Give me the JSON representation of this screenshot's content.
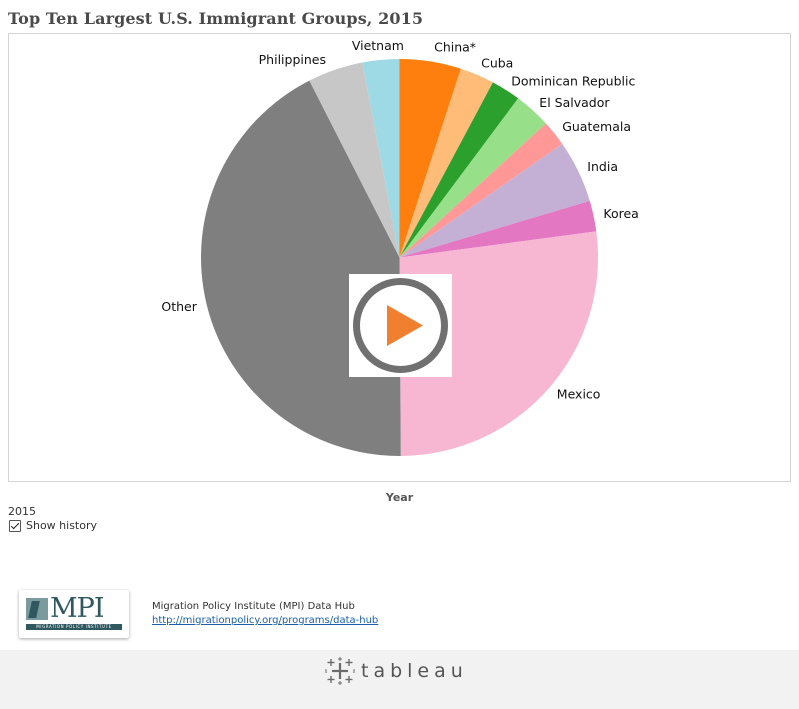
{
  "title": "Top Ten Largest U.S. Immigrant Groups, 2015",
  "chart_data": {
    "type": "pie",
    "title": "Top Ten Largest U.S. Immigrant Groups, 2015",
    "slices": [
      {
        "label": "China*",
        "value": 5.0,
        "color": "#ff7f0e"
      },
      {
        "label": "Cuba",
        "value": 2.8,
        "color": "#ffbb78"
      },
      {
        "label": "Dominican Republic",
        "value": 2.4,
        "color": "#2ca02c"
      },
      {
        "label": "El Salvador",
        "value": 3.0,
        "color": "#98df8a"
      },
      {
        "label": "Guatemala",
        "value": 2.1,
        "color": "#ff9896"
      },
      {
        "label": "India",
        "value": 5.1,
        "color": "#c5b0d5"
      },
      {
        "label": "Korea",
        "value": 2.5,
        "color": "#e377c2"
      },
      {
        "label": "Mexico",
        "value": 27.0,
        "color": "#f7b6d2"
      },
      {
        "label": "Other",
        "value": 42.6,
        "color": "#7f7f7f"
      },
      {
        "label": "Philippines",
        "value": 4.5,
        "color": "#c7c7c7"
      },
      {
        "label": "Vietnam",
        "value": 3.0,
        "color": "#9edae5"
      }
    ]
  },
  "controls": {
    "year_label": "Year",
    "year_value": "2015",
    "show_history_label": "Show history",
    "show_history_checked": true
  },
  "footer": {
    "logo_text": "MPI",
    "logo_subtext": "MIGRATION POLICY INSTITUTE",
    "hub_name": "Migration Policy Institute (MPI) Data Hub",
    "hub_link": "http://migrationpolicy.org/programs/data-hub",
    "brand": "tableau"
  },
  "colors": {
    "play_ring": "#707070",
    "play_triangle": "#f08030"
  }
}
